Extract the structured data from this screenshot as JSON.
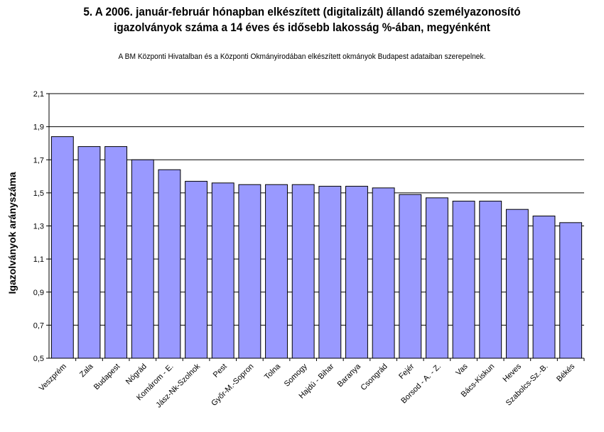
{
  "chart_data": {
    "type": "bar",
    "title_line1": "5. A 2006. január-február hónapban elkészített (digitalizált) állandó személyazonosító",
    "title_line2": "igazolványok száma a 14 éves és idősebb lakosság %-ában, megyénként",
    "subtitle": "A BM Központi Hivatalban és a Központi Okmányirodában elkészített  okmányok Budapest adataiban szerepelnek.",
    "xlabel": "",
    "ylabel": "Igazolványok arányszáma",
    "ylim": [
      0.5,
      2.1
    ],
    "yticks": [
      "2,1",
      "1,9",
      "1,7",
      "1,5",
      "1,3",
      "1,1",
      "0,9",
      "0,7",
      "0,5"
    ],
    "grid": true,
    "bar_color": "#9999ff",
    "categories": [
      "Veszprém",
      "Zala",
      "Budapest",
      "Nógrád",
      "Komárom - E.",
      "Jász-Nk-Szolnok",
      "Pest",
      "Győr-M.-Sopron",
      "Tolna",
      "Somogy",
      "Hajdú - Bihar",
      "Baranya",
      "Csongrád",
      "Fejér",
      "Borsod - A. - Z.",
      "Vas",
      "Bács-Kiskun",
      "Heves",
      "Szabolcs-Sz.-B.",
      "Békés"
    ],
    "values": [
      1.84,
      1.78,
      1.78,
      1.7,
      1.64,
      1.57,
      1.56,
      1.55,
      1.55,
      1.55,
      1.54,
      1.54,
      1.53,
      1.49,
      1.47,
      1.45,
      1.45,
      1.4,
      1.36,
      1.32
    ]
  }
}
